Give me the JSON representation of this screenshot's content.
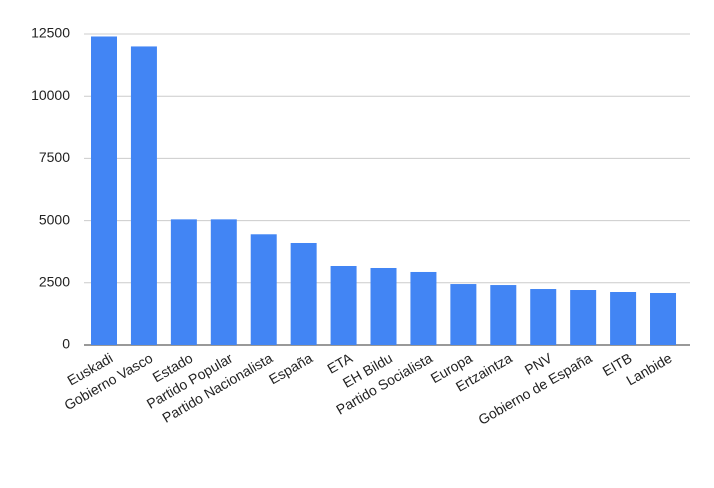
{
  "chart_data": {
    "type": "bar",
    "categories": [
      "Euskadi",
      "Gobierno Vasco",
      "Estado",
      "Partido Popular",
      "Partido Nacionalista",
      "España",
      "ETA",
      "EH Bildu",
      "Partido Socialista",
      "Europa",
      "Ertzaintza",
      "PNV",
      "Gobierno de España",
      "EITB",
      "Lanbide"
    ],
    "values": [
      12400,
      12000,
      5050,
      5050,
      4450,
      4100,
      3175,
      3095,
      2935,
      2450,
      2410,
      2250,
      2210,
      2130,
      2090
    ],
    "color": "#4285f4",
    "ylim": [
      0,
      12500
    ],
    "yticks": [
      0,
      2500,
      5000,
      7500,
      10000,
      12500
    ],
    "grid": true
  }
}
